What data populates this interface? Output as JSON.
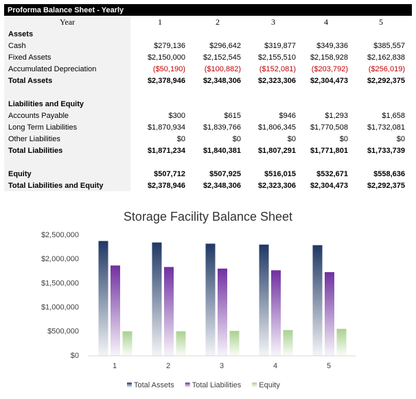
{
  "table": {
    "title": "Proforma Balance Sheet - Yearly",
    "header": [
      "Year",
      "1",
      "2",
      "3",
      "4",
      "5"
    ],
    "rows": [
      {
        "label": "Assets",
        "bold": true
      },
      {
        "label": "Cash",
        "cells": [
          "$279,136",
          "$296,642",
          "$319,877",
          "$349,336",
          "$385,557"
        ]
      },
      {
        "label": "Fixed Assets",
        "cells": [
          "$2,150,000",
          "$2,152,545",
          "$2,155,510",
          "$2,158,928",
          "$2,162,838"
        ]
      },
      {
        "label": "Accumulated Depreciation",
        "color": "#c00000",
        "cells": [
          "($50,190)",
          "($100,882)",
          "($152,081)",
          "($203,792)",
          "($256,019)"
        ]
      },
      {
        "label": "Total Assets",
        "bold": true,
        "cells": [
          "$2,378,946",
          "$2,348,306",
          "$2,323,306",
          "$2,304,473",
          "$2,292,375"
        ]
      },
      {
        "label": "Liabilities and Equity",
        "bold": true,
        "space_before": true
      },
      {
        "label": "Accounts Payable",
        "cells": [
          "$300",
          "$615",
          "$946",
          "$1,293",
          "$1,658"
        ]
      },
      {
        "label": "Long Term Liabilities",
        "cells": [
          "$1,870,934",
          "$1,839,766",
          "$1,806,345",
          "$1,770,508",
          "$1,732,081"
        ]
      },
      {
        "label": "Other Liabilities",
        "cells": [
          "$0",
          "$0",
          "$0",
          "$0",
          "$0"
        ]
      },
      {
        "label": "Total Liabilities",
        "bold": true,
        "cells": [
          "$1,871,234",
          "$1,840,381",
          "$1,807,291",
          "$1,771,801",
          "$1,733,739"
        ]
      },
      {
        "label": "Equity",
        "bold": true,
        "space_before": true,
        "cells": [
          "$507,712",
          "$507,925",
          "$516,015",
          "$532,671",
          "$558,636"
        ]
      },
      {
        "label": "Total Liabilities and Equity",
        "bold": true,
        "cells": [
          "$2,378,946",
          "$2,348,306",
          "$2,323,306",
          "$2,304,473",
          "$2,292,375"
        ]
      }
    ]
  },
  "chart_data": {
    "type": "bar",
    "title": "Storage Facility Balance Sheet",
    "categories": [
      "1",
      "2",
      "3",
      "4",
      "5"
    ],
    "series": [
      {
        "name": "Total Assets",
        "color": "#1f3864",
        "values": [
          2378946,
          2348306,
          2323306,
          2304473,
          2292375
        ]
      },
      {
        "name": "Total Liabilities",
        "color": "#7030a0",
        "values": [
          1871234,
          1840381,
          1807291,
          1771801,
          1733739
        ]
      },
      {
        "name": "Equity",
        "color": "#a9d18e",
        "values": [
          507712,
          507925,
          516015,
          532671,
          558636
        ]
      }
    ],
    "ylim": [
      0,
      2500000
    ],
    "yticks": [
      {
        "value": 0,
        "label": "$0"
      },
      {
        "value": 500000,
        "label": "$500,000"
      },
      {
        "value": 1000000,
        "label": "$1,000,000"
      },
      {
        "value": 1500000,
        "label": "$1,500,000"
      },
      {
        "value": 2000000,
        "label": "$2,000,000"
      },
      {
        "value": 2500000,
        "label": "$2,500,000"
      }
    ],
    "legend": "bottom",
    "grid": false
  }
}
